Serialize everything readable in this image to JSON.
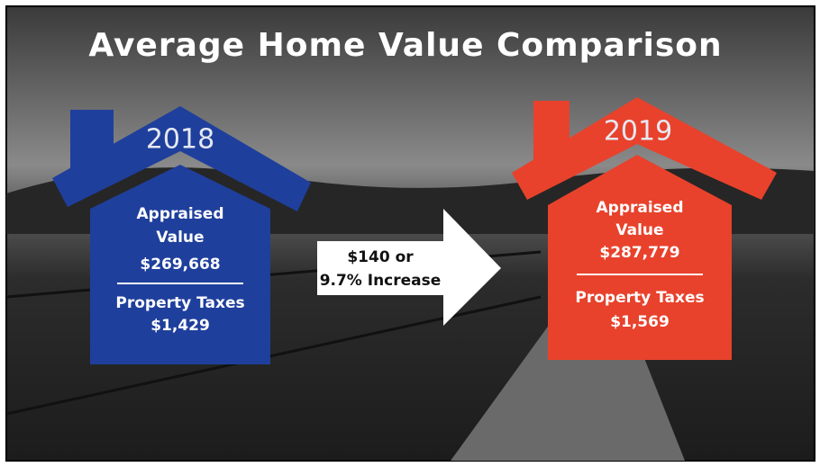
{
  "title": "Average Home Value Comparison",
  "houses": [
    {
      "year": "2018",
      "appraised_lines": [
        "Appraised",
        "Value"
      ],
      "appraised_value": "$269,668",
      "taxes_label": "Property Taxes",
      "taxes_value": "$1,429"
    },
    {
      "year": "2019",
      "appraised_lines": [
        "Appraised",
        "Value"
      ],
      "appraised_value": "$287,779",
      "taxes_label": "Property Taxes",
      "taxes_value": "$1,569"
    }
  ],
  "arrow": {
    "lines": [
      "$140 or",
      "9.7% Increase"
    ]
  }
}
